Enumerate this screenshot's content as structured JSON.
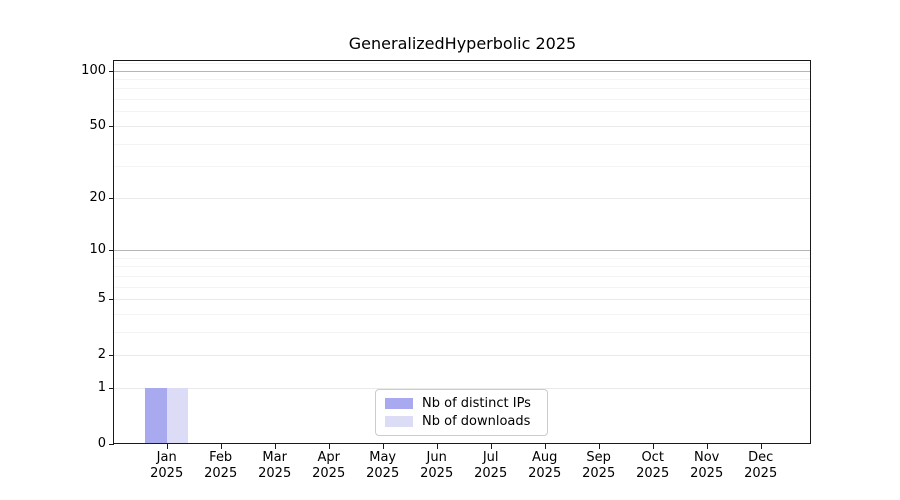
{
  "chart_data": {
    "type": "bar",
    "title": "GeneralizedHyperbolic 2025",
    "categories": [
      "Jan",
      "Feb",
      "Mar",
      "Apr",
      "May",
      "Jun",
      "Jul",
      "Aug",
      "Sep",
      "Oct",
      "Nov",
      "Dec"
    ],
    "category_year": "2025",
    "series": [
      {
        "name": "Nb of distinct IPs",
        "color": "#a9a9f0",
        "values": [
          1,
          0,
          0,
          0,
          0,
          0,
          0,
          0,
          0,
          0,
          0,
          0
        ]
      },
      {
        "name": "Nb of downloads",
        "color": "#dcdcf7",
        "values": [
          1,
          0,
          0,
          0,
          0,
          0,
          0,
          0,
          0,
          0,
          0,
          0
        ]
      }
    ],
    "xlabel": "",
    "ylabel": "",
    "yscale": "log1p",
    "ylim": [
      0,
      112.7
    ],
    "yticks": [
      0,
      1,
      2,
      5,
      10,
      20,
      50,
      100
    ],
    "minor_gridlines": [
      3,
      4,
      6,
      7,
      8,
      9,
      30,
      40,
      60,
      70,
      80,
      90,
      110
    ],
    "emphasized_gridlines": [
      10,
      100
    ],
    "grid": true,
    "legend_position": "lower center",
    "style": {
      "grid_minor_color": "#f4f4f4",
      "grid_major_color": "#eaeaea",
      "grid_strong_color": "#b6b6b6",
      "spine_color": "#1a1a1a",
      "legend_border_color": "#cccccc",
      "text_color": "#000000",
      "background_color": "#ffffff"
    }
  }
}
